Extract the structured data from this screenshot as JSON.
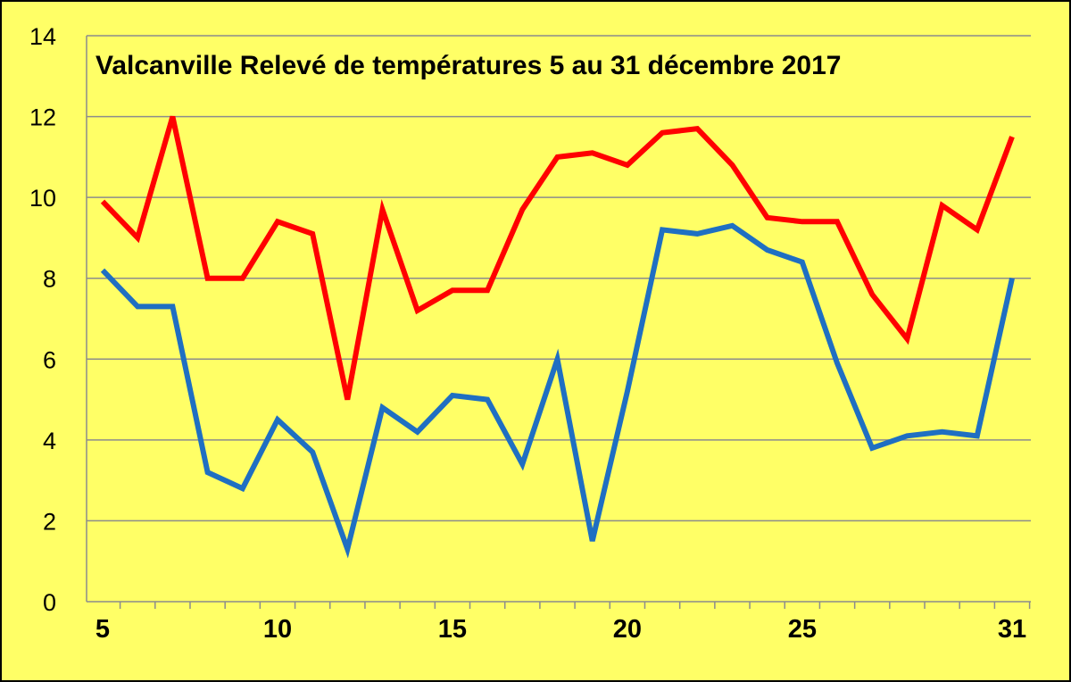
{
  "chart_data": {
    "type": "line",
    "title": "Valcanville Relevé de températures 5 au 31 décembre 2017",
    "xlabel": "",
    "ylabel": "",
    "x": [
      5,
      6,
      7,
      8,
      9,
      10,
      11,
      12,
      13,
      14,
      15,
      16,
      17,
      18,
      19,
      20,
      21,
      22,
      23,
      24,
      25,
      26,
      27,
      28,
      29,
      30,
      31
    ],
    "xlim": [
      5,
      31
    ],
    "ylim": [
      0,
      14
    ],
    "yticks": [
      0,
      2,
      4,
      6,
      8,
      10,
      12,
      14
    ],
    "xticks": [
      5,
      10,
      15,
      20,
      25,
      31
    ],
    "xtick_labels": [
      "5",
      "10",
      "15",
      "20",
      "25",
      "31"
    ],
    "grid": "horizontal",
    "legend": "none",
    "background_color": "#ffff66",
    "series": [
      {
        "color": "#ff0000",
        "values": [
          9.9,
          9.0,
          12.0,
          8.0,
          8.0,
          9.4,
          9.1,
          5.0,
          9.7,
          7.2,
          7.7,
          7.7,
          9.7,
          11.0,
          11.1,
          10.8,
          11.6,
          11.7,
          10.8,
          9.5,
          9.4,
          9.4,
          7.6,
          6.5,
          9.8,
          9.2,
          11.5
        ]
      },
      {
        "color": "#1f6fc2",
        "values": [
          8.2,
          7.3,
          7.3,
          3.2,
          2.8,
          4.5,
          3.7,
          1.3,
          4.8,
          4.2,
          5.1,
          5.0,
          3.4,
          6.0,
          1.5,
          5.2,
          9.2,
          9.1,
          9.3,
          8.7,
          8.4,
          5.9,
          3.8,
          4.1,
          4.2,
          4.1,
          8.0
        ]
      }
    ]
  }
}
